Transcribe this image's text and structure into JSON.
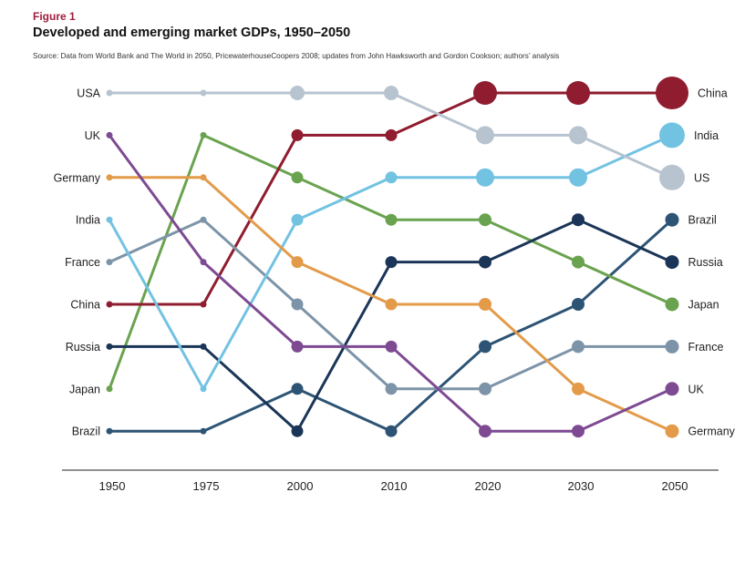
{
  "figure_label": "Figure 1",
  "title": "Developed and emerging market GDPs, 1950–2050",
  "source": "Source: Data from World Bank and The World in 2050, PricewaterhouseCoopers 2008; updates from John Hawksworth and Gordon Cookson; authors’ analysis",
  "chart_data": {
    "type": "line",
    "subtype": "bump (rank) chart",
    "x": [
      "1950",
      "1975",
      "2000",
      "2010",
      "2020",
      "2030",
      "2050"
    ],
    "y_meaning": "rank (1 = largest GDP)",
    "ylim": [
      1,
      9
    ],
    "grid": false,
    "series": [
      {
        "name": "USA",
        "end_label": "US",
        "color": "#b7c4d0",
        "ranks": [
          1,
          1,
          1,
          1,
          2,
          2,
          3
        ]
      },
      {
        "name": "UK",
        "end_label": "UK",
        "color": "#7e4a92",
        "ranks": [
          2,
          5,
          7,
          7,
          9,
          9,
          8
        ]
      },
      {
        "name": "Germany",
        "end_label": "Germany",
        "color": "#e39b4a",
        "ranks": [
          3,
          3,
          5,
          6,
          6,
          8,
          9
        ]
      },
      {
        "name": "India",
        "end_label": "India",
        "color": "#72c2e2",
        "ranks": [
          4,
          8,
          4,
          3,
          3,
          3,
          2
        ]
      },
      {
        "name": "France",
        "end_label": "France",
        "color": "#7d94a8",
        "ranks": [
          5,
          4,
          6,
          8,
          8,
          7,
          7
        ]
      },
      {
        "name": "China",
        "end_label": "China",
        "color": "#8f1c2f",
        "ranks": [
          6,
          6,
          2,
          2,
          1,
          1,
          1
        ]
      },
      {
        "name": "Russia",
        "end_label": "Russia",
        "color": "#1b3558",
        "ranks": [
          7,
          7,
          9,
          5,
          5,
          4,
          5
        ]
      },
      {
        "name": "Japan",
        "end_label": "Japan",
        "color": "#6aa34f",
        "ranks": [
          8,
          2,
          3,
          4,
          4,
          5,
          6
        ]
      },
      {
        "name": "Brazil",
        "end_label": "Brazil",
        "color": "#2d5475",
        "ranks": [
          9,
          9,
          8,
          9,
          7,
          6,
          4
        ]
      }
    ],
    "markers": {
      "note": "dot size grows over time; in 2020-2050 the dot for the top-ranked economies is largest",
      "size_by_year": [
        1,
        1,
        2,
        2,
        3,
        3,
        3
      ]
    }
  }
}
